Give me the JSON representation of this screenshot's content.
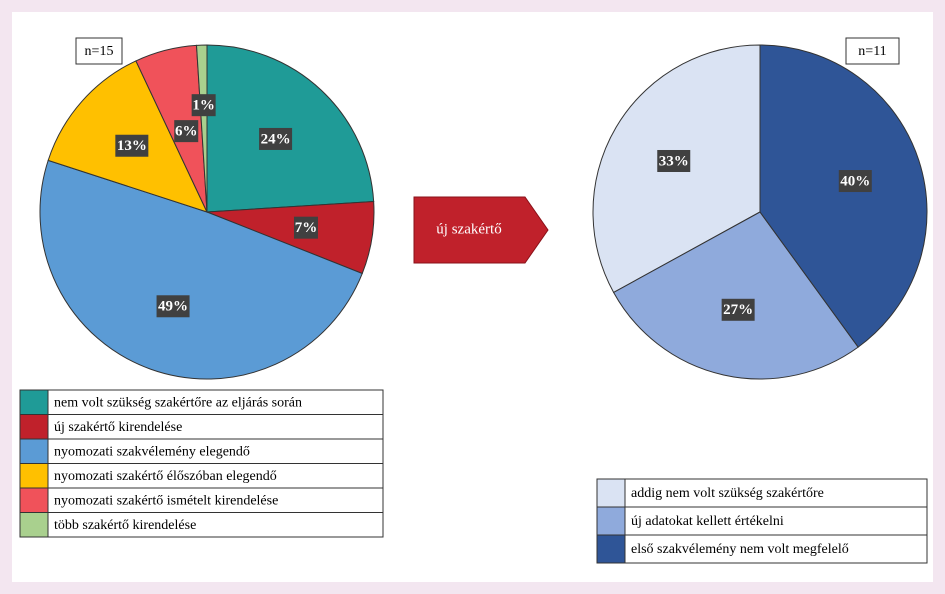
{
  "chart_data": [
    {
      "type": "pie",
      "note_box": "n=15",
      "clockwise": true,
      "categories": [
        "nem volt szükség szakértőre az eljárás során",
        "új szakértő kirendelése",
        "nyomozati szakvélemény elegendő",
        "nyomozati szakértő élőszóban elegendő",
        "nyomozati szakértő ismételt kirendelése",
        "több szakértő kirendelése"
      ],
      "values": [
        24,
        7,
        49,
        13,
        6,
        1
      ],
      "value_labels": [
        "24%",
        "7%",
        "49%",
        "13%",
        "6%",
        "1%"
      ],
      "colors": [
        "#1f9b97",
        "#c0212b",
        "#5b9bd5",
        "#ffc000",
        "#f0525a",
        "#a9d08e"
      ]
    },
    {
      "type": "pie",
      "note_box": "n=11",
      "clockwise": false,
      "categories": [
        "addig nem volt szükség szakértőre",
        "új adatokat kellett értékelni",
        "első szakvélemény nem volt megfelelő"
      ],
      "values": [
        33,
        27,
        40
      ],
      "value_labels": [
        "33%",
        "27%",
        "40%"
      ],
      "colors": [
        "#dae3f3",
        "#8faadc",
        "#2f5597"
      ]
    }
  ],
  "arrow": {
    "label": "új szakértő"
  }
}
